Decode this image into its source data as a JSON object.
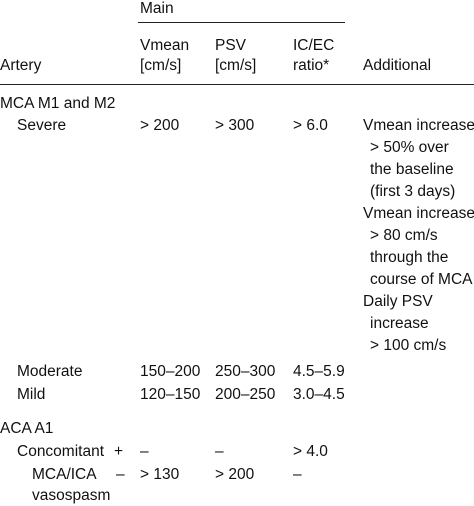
{
  "header": {
    "group": "Main",
    "artery": "Artery",
    "vmean_1": "Vmean",
    "vmean_2": "[cm/s]",
    "psv_1": "PSV",
    "psv_2": "[cm/s]",
    "icec_1": "IC/EC",
    "icec_2": "ratio*",
    "additional": "Additional"
  },
  "mca": {
    "title": "MCA M1 and M2",
    "severe": {
      "label": "Severe",
      "vmean": "> 200",
      "psv": "> 300",
      "ratio": "> 6.0"
    },
    "additional": [
      "Vmean increase",
      "> 50% over",
      "the baseline",
      "(first 3 days)",
      "Vmean increase",
      "> 80 cm/s",
      "through the",
      "course of MCA",
      "Daily PSV",
      "increase",
      "> 100 cm/s"
    ],
    "moderate": {
      "label": "Moderate",
      "vmean": "150–200",
      "psv": "250–300",
      "ratio": "4.5–5.9"
    },
    "mild": {
      "label": "Mild",
      "vmean": "120–150",
      "psv": "200–250",
      "ratio": "3.0–4.5"
    }
  },
  "aca": {
    "title": "ACA A1",
    "concomitant": {
      "label": "Concomitant",
      "sign": "+",
      "vmean": "–",
      "psv": "–",
      "ratio": "> 4.0"
    },
    "mca_ica": {
      "label": "MCA/ICA",
      "sign": "–",
      "vmean": "> 130",
      "psv": "> 200",
      "ratio": "–"
    },
    "vasospasm": {
      "label": "vasospasm"
    }
  }
}
